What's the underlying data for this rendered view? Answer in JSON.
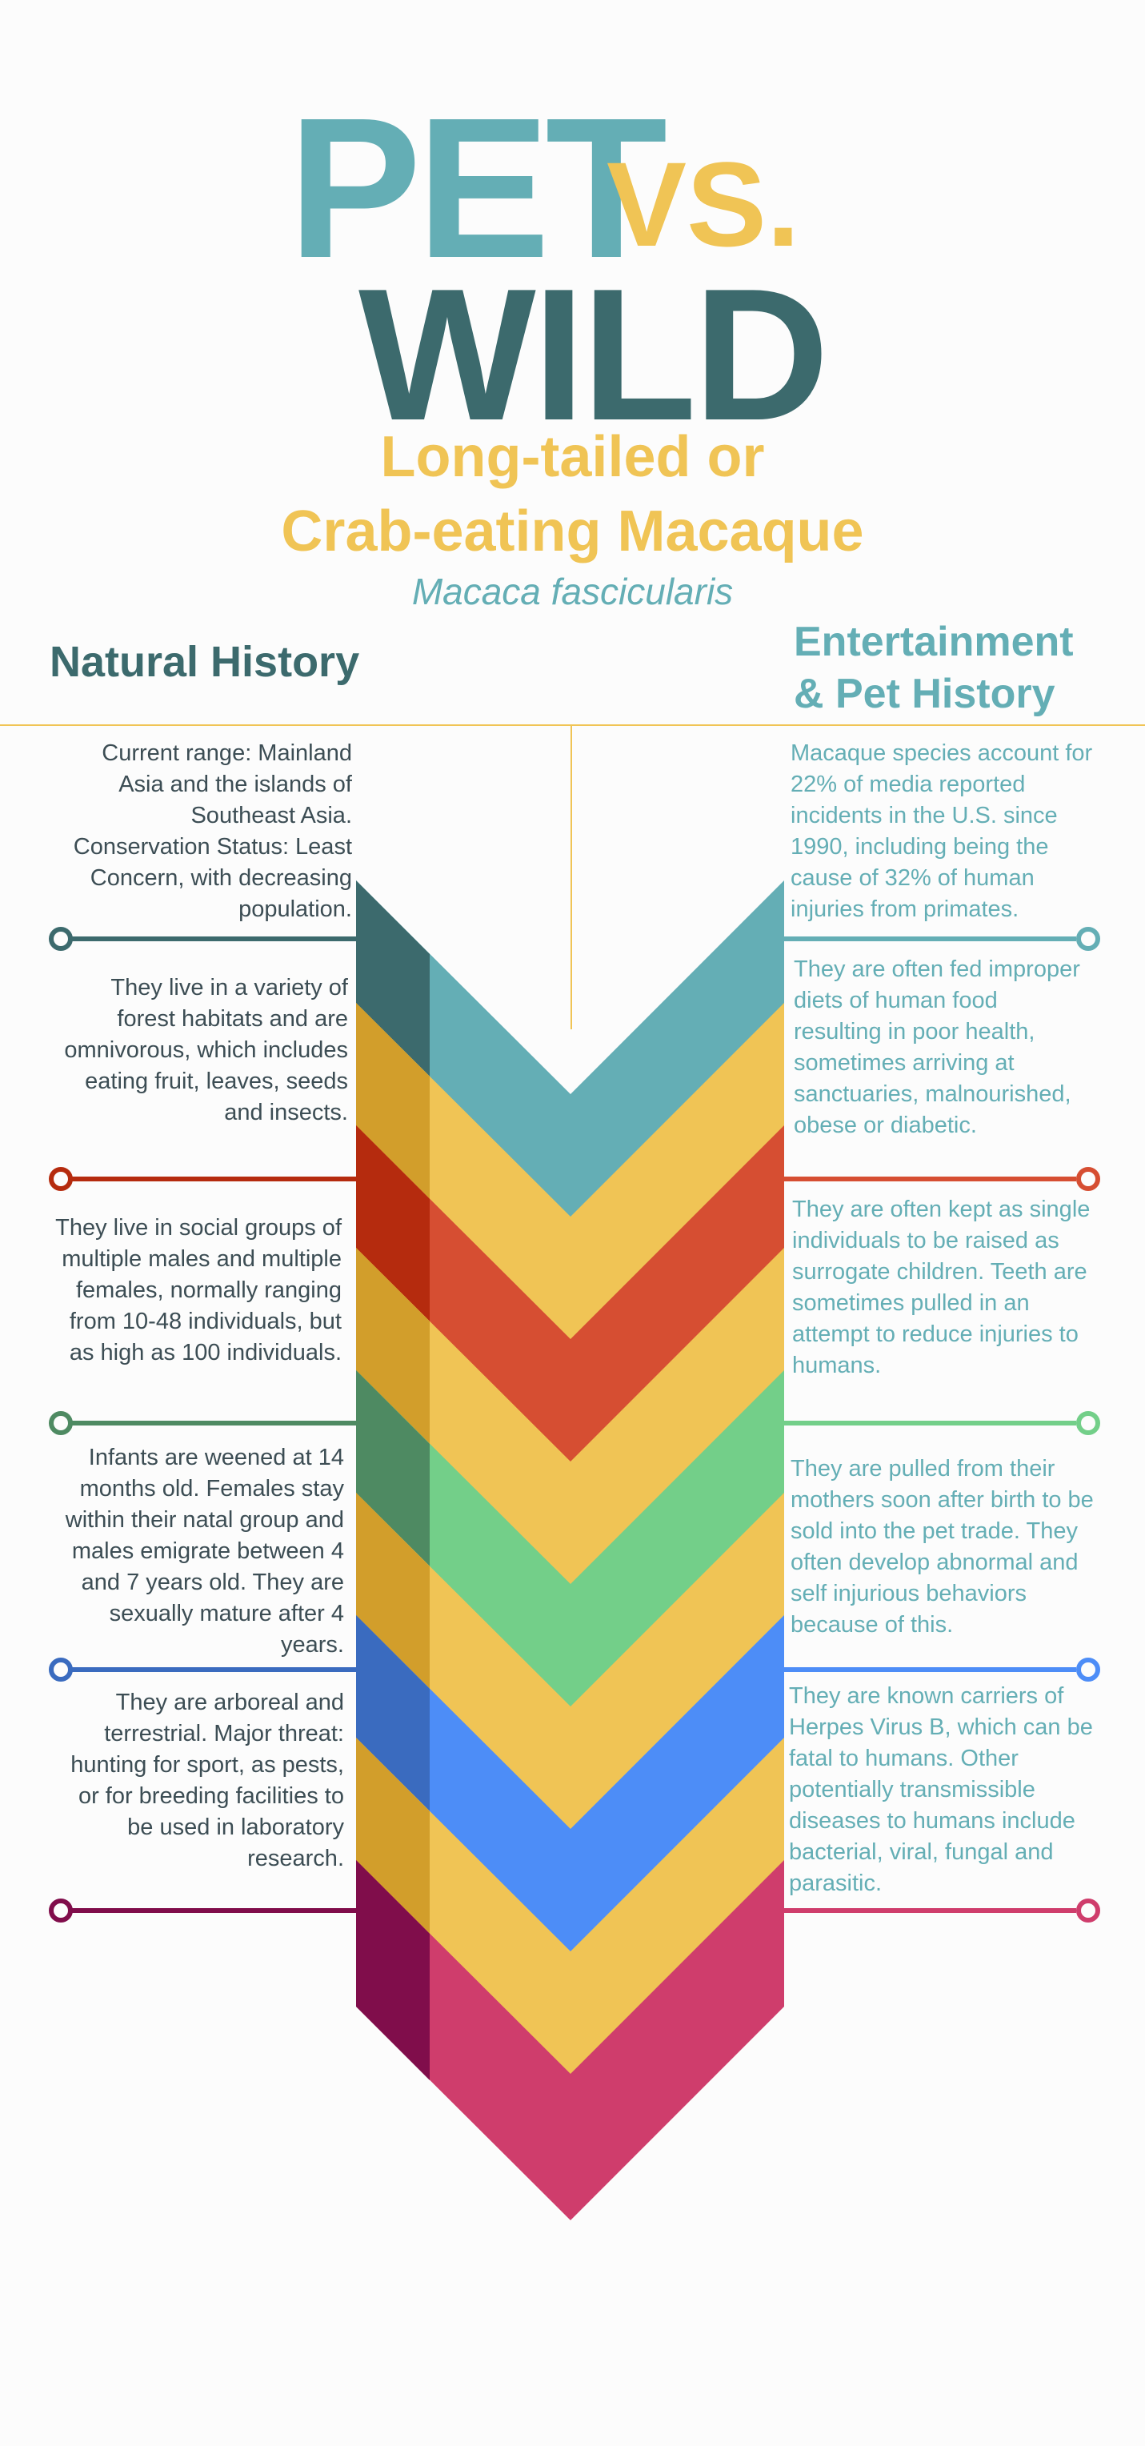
{
  "title": {
    "pet": "PET",
    "vs": "VS.",
    "wild": "WILD"
  },
  "species": {
    "line1": "Long-tailed or",
    "line2": "Crab-eating Macaque",
    "scientific": "Macaca fascicularis"
  },
  "headings": {
    "left": "Natural History",
    "right_line1": "Entertainment",
    "right_line2": "& Pet History"
  },
  "colors": {
    "teal": "#64aeb5",
    "dark_teal": "#3c6a6d",
    "yellow": "#f0c455",
    "dark_yellow": "#d29e2b",
    "red": "#d64e32",
    "dark_red": "#b52b0e",
    "green": "#73cf89",
    "dark_green": "#4e8a62",
    "blue": "#4d8df7",
    "dark_blue": "#3a6bbf",
    "pink": "#cf3d6c",
    "dark_pink": "#800d4b"
  },
  "natural_history": [
    "Current range: Mainland Asia and the islands of Southeast Asia. Conservation Status: Least Concern, with decreasing population.",
    "They live in a variety of forest habitats and are omnivorous, which includes eating fruit, leaves, seeds and insects.",
    "They live in social groups of multiple males and multiple females, normally ranging from 10-48 individuals, but as high as 100 individuals.",
    "Infants are weened at 14 months old. Females stay within their natal group and males emigrate between 4 and 7 years old. They are sexually mature after 4 years.",
    "They are arboreal and terrestrial. Major threat: hunting for sport, as pests, or for breeding facilities to be used in laboratory research."
  ],
  "pet_history": [
    "Macaque species account for 22% of media reported incidents in the U.S. since 1990, including being the cause of 32% of human injuries from primates.",
    "They are often fed improper diets of human food resulting in poor health, sometimes arriving at sanctuaries, malnourished, obese or diabetic.",
    "They are often kept as single individuals to be raised as surrogate children. Teeth are sometimes pulled in an attempt to reduce injuries to humans.",
    "They are pulled from their mothers soon after birth to be sold into the pet trade. They often develop abnormal and self injurious behaviors because of this.",
    "They are known carriers of Herpes Virus B, which can be fatal to humans. Other potentially transmissible diseases to humans include bacterial, viral, fungal and parasitic."
  ]
}
